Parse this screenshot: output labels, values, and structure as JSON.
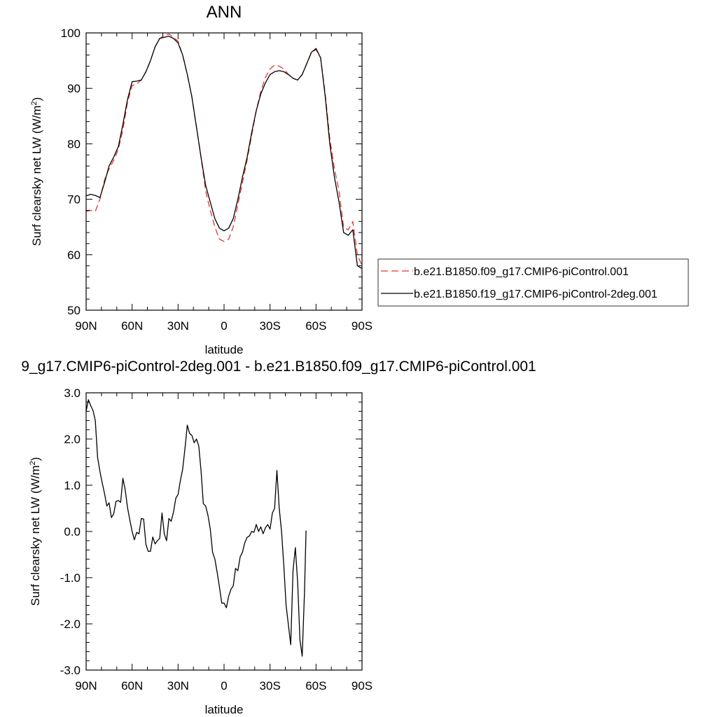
{
  "chart_data": [
    {
      "type": "line",
      "title": "ANN",
      "xlabel": "latitude",
      "ylabel_main": "Surf clearsky net LW (W/m",
      "ylabel_sup": "2",
      "ylabel_close": ")",
      "xlim": [
        90,
        -90
      ],
      "ylim": [
        50,
        100
      ],
      "x_ticks": [
        90,
        60,
        30,
        0,
        -30,
        -60,
        -90
      ],
      "x_tick_labels": [
        "90N",
        "60N",
        "30N",
        "0",
        "30S",
        "60S",
        "90S"
      ],
      "y_ticks": [
        50,
        60,
        70,
        80,
        90,
        100
      ],
      "y_tick_labels": [
        "50",
        "60",
        "70",
        "80",
        "90",
        "100"
      ],
      "legend_position": "outside-right",
      "series": [
        {
          "name": "b.e21.B1850.f09_g17.CMIP6-piControl.001",
          "color": "#e8332f",
          "dash": "dashed",
          "points": [
            [
              90,
              67.8
            ],
            [
              87,
              68.0
            ],
            [
              84,
              67.8
            ],
            [
              81,
              70.0
            ],
            [
              78,
              73.5
            ],
            [
              75,
              75.5
            ],
            [
              72,
              77.0
            ],
            [
              69,
              79.0
            ],
            [
              66,
              82.5
            ],
            [
              63,
              87.5
            ],
            [
              60,
              90.5
            ],
            [
              57,
              90.8
            ],
            [
              54,
              91.5
            ],
            [
              51,
              93.0
            ],
            [
              48,
              95.0
            ],
            [
              45,
              97.5
            ],
            [
              42,
              99.0
            ],
            [
              39,
              99.5
            ],
            [
              36,
              99.8
            ],
            [
              33,
              99.2
            ],
            [
              30,
              98.5
            ],
            [
              27,
              96.0
            ],
            [
              24,
              92.5
            ],
            [
              21,
              88.5
            ],
            [
              18,
              83.0
            ],
            [
              15,
              77.5
            ],
            [
              12,
              71.5
            ],
            [
              9,
              68.0
            ],
            [
              6,
              65.0
            ],
            [
              3,
              62.8
            ],
            [
              0,
              62.4
            ],
            [
              -3,
              62.8
            ],
            [
              -6,
              65.0
            ],
            [
              -9,
              69.0
            ],
            [
              -12,
              73.0
            ],
            [
              -15,
              77.0
            ],
            [
              -18,
              81.5
            ],
            [
              -21,
              86.0
            ],
            [
              -24,
              89.5
            ],
            [
              -27,
              92.0
            ],
            [
              -30,
              93.5
            ],
            [
              -33,
              94.2
            ],
            [
              -36,
              94.0
            ],
            [
              -39,
              93.5
            ],
            [
              -42,
              92.5
            ],
            [
              -45,
              91.8
            ],
            [
              -48,
              91.5
            ],
            [
              -51,
              92.5
            ],
            [
              -54,
              94.5
            ],
            [
              -57,
              96.5
            ],
            [
              -60,
              97.0
            ],
            [
              -63,
              95.5
            ],
            [
              -66,
              89.0
            ],
            [
              -69,
              81.0
            ],
            [
              -72,
              75.5
            ],
            [
              -75,
              71.5
            ],
            [
              -78,
              65.0
            ],
            [
              -81,
              64.5
            ],
            [
              -84,
              66.0
            ],
            [
              -87,
              60.0
            ],
            [
              -90,
              58.0
            ]
          ]
        },
        {
          "name": "b.e21.B1850.f19_g17.CMIP6-piControl-2deg.001",
          "color": "#000000",
          "dash": "solid",
          "points": [
            [
              90,
              70.6
            ],
            [
              87,
              70.9
            ],
            [
              84,
              70.7
            ],
            [
              81,
              70.3
            ],
            [
              78,
              73.0
            ],
            [
              75,
              76.0
            ],
            [
              72,
              77.6
            ],
            [
              69,
              79.5
            ],
            [
              66,
              83.5
            ],
            [
              63,
              88.0
            ],
            [
              60,
              91.2
            ],
            [
              57,
              91.3
            ],
            [
              54,
              91.5
            ],
            [
              51,
              93.0
            ],
            [
              48,
              95.0
            ],
            [
              45,
              97.5
            ],
            [
              42,
              99.0
            ],
            [
              39,
              99.2
            ],
            [
              36,
              99.4
            ],
            [
              33,
              99.0
            ],
            [
              30,
              98.2
            ],
            [
              27,
              96.0
            ],
            [
              24,
              92.5
            ],
            [
              21,
              88.5
            ],
            [
              18,
              83.0
            ],
            [
              15,
              77.5
            ],
            [
              12,
              72.5
            ],
            [
              9,
              69.5
            ],
            [
              6,
              66.5
            ],
            [
              3,
              64.8
            ],
            [
              0,
              64.3
            ],
            [
              -3,
              64.8
            ],
            [
              -6,
              66.5
            ],
            [
              -9,
              70.0
            ],
            [
              -12,
              74.0
            ],
            [
              -15,
              77.5
            ],
            [
              -18,
              82.0
            ],
            [
              -21,
              86.0
            ],
            [
              -24,
              89.0
            ],
            [
              -27,
              91.0
            ],
            [
              -30,
              92.5
            ],
            [
              -33,
              93.0
            ],
            [
              -36,
              93.2
            ],
            [
              -39,
              93.0
            ],
            [
              -42,
              92.5
            ],
            [
              -45,
              91.8
            ],
            [
              -48,
              91.5
            ],
            [
              -51,
              92.5
            ],
            [
              -54,
              94.5
            ],
            [
              -57,
              96.5
            ],
            [
              -60,
              97.2
            ],
            [
              -63,
              95.5
            ],
            [
              -66,
              88.5
            ],
            [
              -69,
              80.0
            ],
            [
              -72,
              74.0
            ],
            [
              -75,
              69.5
            ],
            [
              -78,
              64.0
            ],
            [
              -81,
              63.5
            ],
            [
              -84,
              64.5
            ],
            [
              -87,
              58.0
            ],
            [
              -90,
              57.5
            ]
          ]
        }
      ]
    },
    {
      "type": "line",
      "title": "9_g17.CMIP6-piControl-2deg.001 - b.e21.B1850.f09_g17.CMIP6-piControl.001",
      "xlabel": "latitude",
      "ylabel_main": "Surf clearsky net LW (W/m",
      "ylabel_sup": "2",
      "ylabel_close": ")",
      "xlim": [
        90,
        -90
      ],
      "ylim": [
        -3,
        3
      ],
      "x_ticks": [
        90,
        60,
        30,
        0,
        -30,
        -60,
        -90
      ],
      "x_tick_labels": [
        "90N",
        "60N",
        "30N",
        "0",
        "30S",
        "60S",
        "90S"
      ],
      "y_ticks": [
        -3,
        -2,
        -1,
        0,
        1,
        2,
        3
      ],
      "y_tick_labels": [
        "-3.0",
        "-2.0",
        "-1.0",
        "0.0",
        "1.0",
        "2.0",
        "3.0"
      ],
      "series": [
        {
          "color": "#000000",
          "dash": "solid",
          "points": [
            [
              90,
              2.6
            ],
            [
              88.5,
              2.85
            ],
            [
              87,
              2.72
            ],
            [
              85.5,
              2.62
            ],
            [
              84,
              2.4
            ],
            [
              82.5,
              1.6
            ],
            [
              81,
              1.3
            ],
            [
              79.5,
              1.05
            ],
            [
              78,
              0.82
            ],
            [
              76.5,
              0.55
            ],
            [
              75,
              0.62
            ],
            [
              73.5,
              0.3
            ],
            [
              72,
              0.38
            ],
            [
              70.5,
              0.65
            ],
            [
              69,
              0.67
            ],
            [
              67.5,
              0.63
            ],
            [
              66,
              1.15
            ],
            [
              64.5,
              0.9
            ],
            [
              63,
              0.52
            ],
            [
              61.5,
              0.25
            ],
            [
              60,
              0.0
            ],
            [
              58.5,
              -0.18
            ],
            [
              57,
              -0.02
            ],
            [
              55.5,
              -0.05
            ],
            [
              54,
              0.28
            ],
            [
              52.5,
              0.27
            ],
            [
              51,
              -0.28
            ],
            [
              49.5,
              -0.43
            ],
            [
              48,
              -0.43
            ],
            [
              46.5,
              -0.12
            ],
            [
              45,
              -0.27
            ],
            [
              43.5,
              -0.2
            ],
            [
              42,
              -0.15
            ],
            [
              40.5,
              0.4
            ],
            [
              39,
              -0.05
            ],
            [
              37.5,
              -0.2
            ],
            [
              36,
              0.28
            ],
            [
              34.5,
              0.22
            ],
            [
              33,
              0.42
            ],
            [
              31.5,
              0.72
            ],
            [
              30,
              0.8
            ],
            [
              28.5,
              1.1
            ],
            [
              27,
              1.35
            ],
            [
              25.5,
              1.8
            ],
            [
              24,
              2.3
            ],
            [
              22.5,
              2.12
            ],
            [
              21,
              2.08
            ],
            [
              19.5,
              1.92
            ],
            [
              18,
              2.0
            ],
            [
              16.5,
              1.85
            ],
            [
              15,
              1.3
            ],
            [
              13.5,
              0.6
            ],
            [
              12,
              0.55
            ],
            [
              10.5,
              0.35
            ],
            [
              9,
              0.05
            ],
            [
              7.5,
              -0.45
            ],
            [
              6,
              -0.6
            ],
            [
              4.5,
              -0.88
            ],
            [
              3,
              -1.2
            ],
            [
              1.5,
              -1.55
            ],
            [
              0,
              -1.55
            ],
            [
              -1.5,
              -1.65
            ],
            [
              -3,
              -1.4
            ],
            [
              -4.5,
              -1.25
            ],
            [
              -6,
              -1.18
            ],
            [
              -7.5,
              -0.8
            ],
            [
              -9,
              -0.85
            ],
            [
              -10.5,
              -0.55
            ],
            [
              -12,
              -0.45
            ],
            [
              -13.5,
              -0.25
            ],
            [
              -15,
              -0.13
            ],
            [
              -16.5,
              -0.1
            ],
            [
              -18,
              0.0
            ],
            [
              -19.5,
              -0.02
            ],
            [
              -21,
              0.15
            ],
            [
              -22.5,
              0.0
            ],
            [
              -24,
              0.1
            ],
            [
              -25.5,
              -0.05
            ],
            [
              -27,
              0.08
            ],
            [
              -28.5,
              0.15
            ],
            [
              -30,
              0.05
            ],
            [
              -31.5,
              0.4
            ],
            [
              -33,
              0.5
            ],
            [
              -34.5,
              1.32
            ],
            [
              -36,
              0.5
            ],
            [
              -37.5,
              0.0
            ],
            [
              -39,
              -0.75
            ],
            [
              -40.5,
              -1.6
            ],
            [
              -43.5,
              -2.45
            ],
            [
              -45,
              -0.85
            ],
            [
              -46.5,
              -0.35
            ],
            [
              -48,
              -1.1
            ],
            [
              -49.5,
              -2.35
            ],
            [
              -51,
              -2.7
            ],
            [
              -52.5,
              -1.3
            ],
            [
              -53.5,
              0.02
            ]
          ]
        }
      ]
    }
  ]
}
